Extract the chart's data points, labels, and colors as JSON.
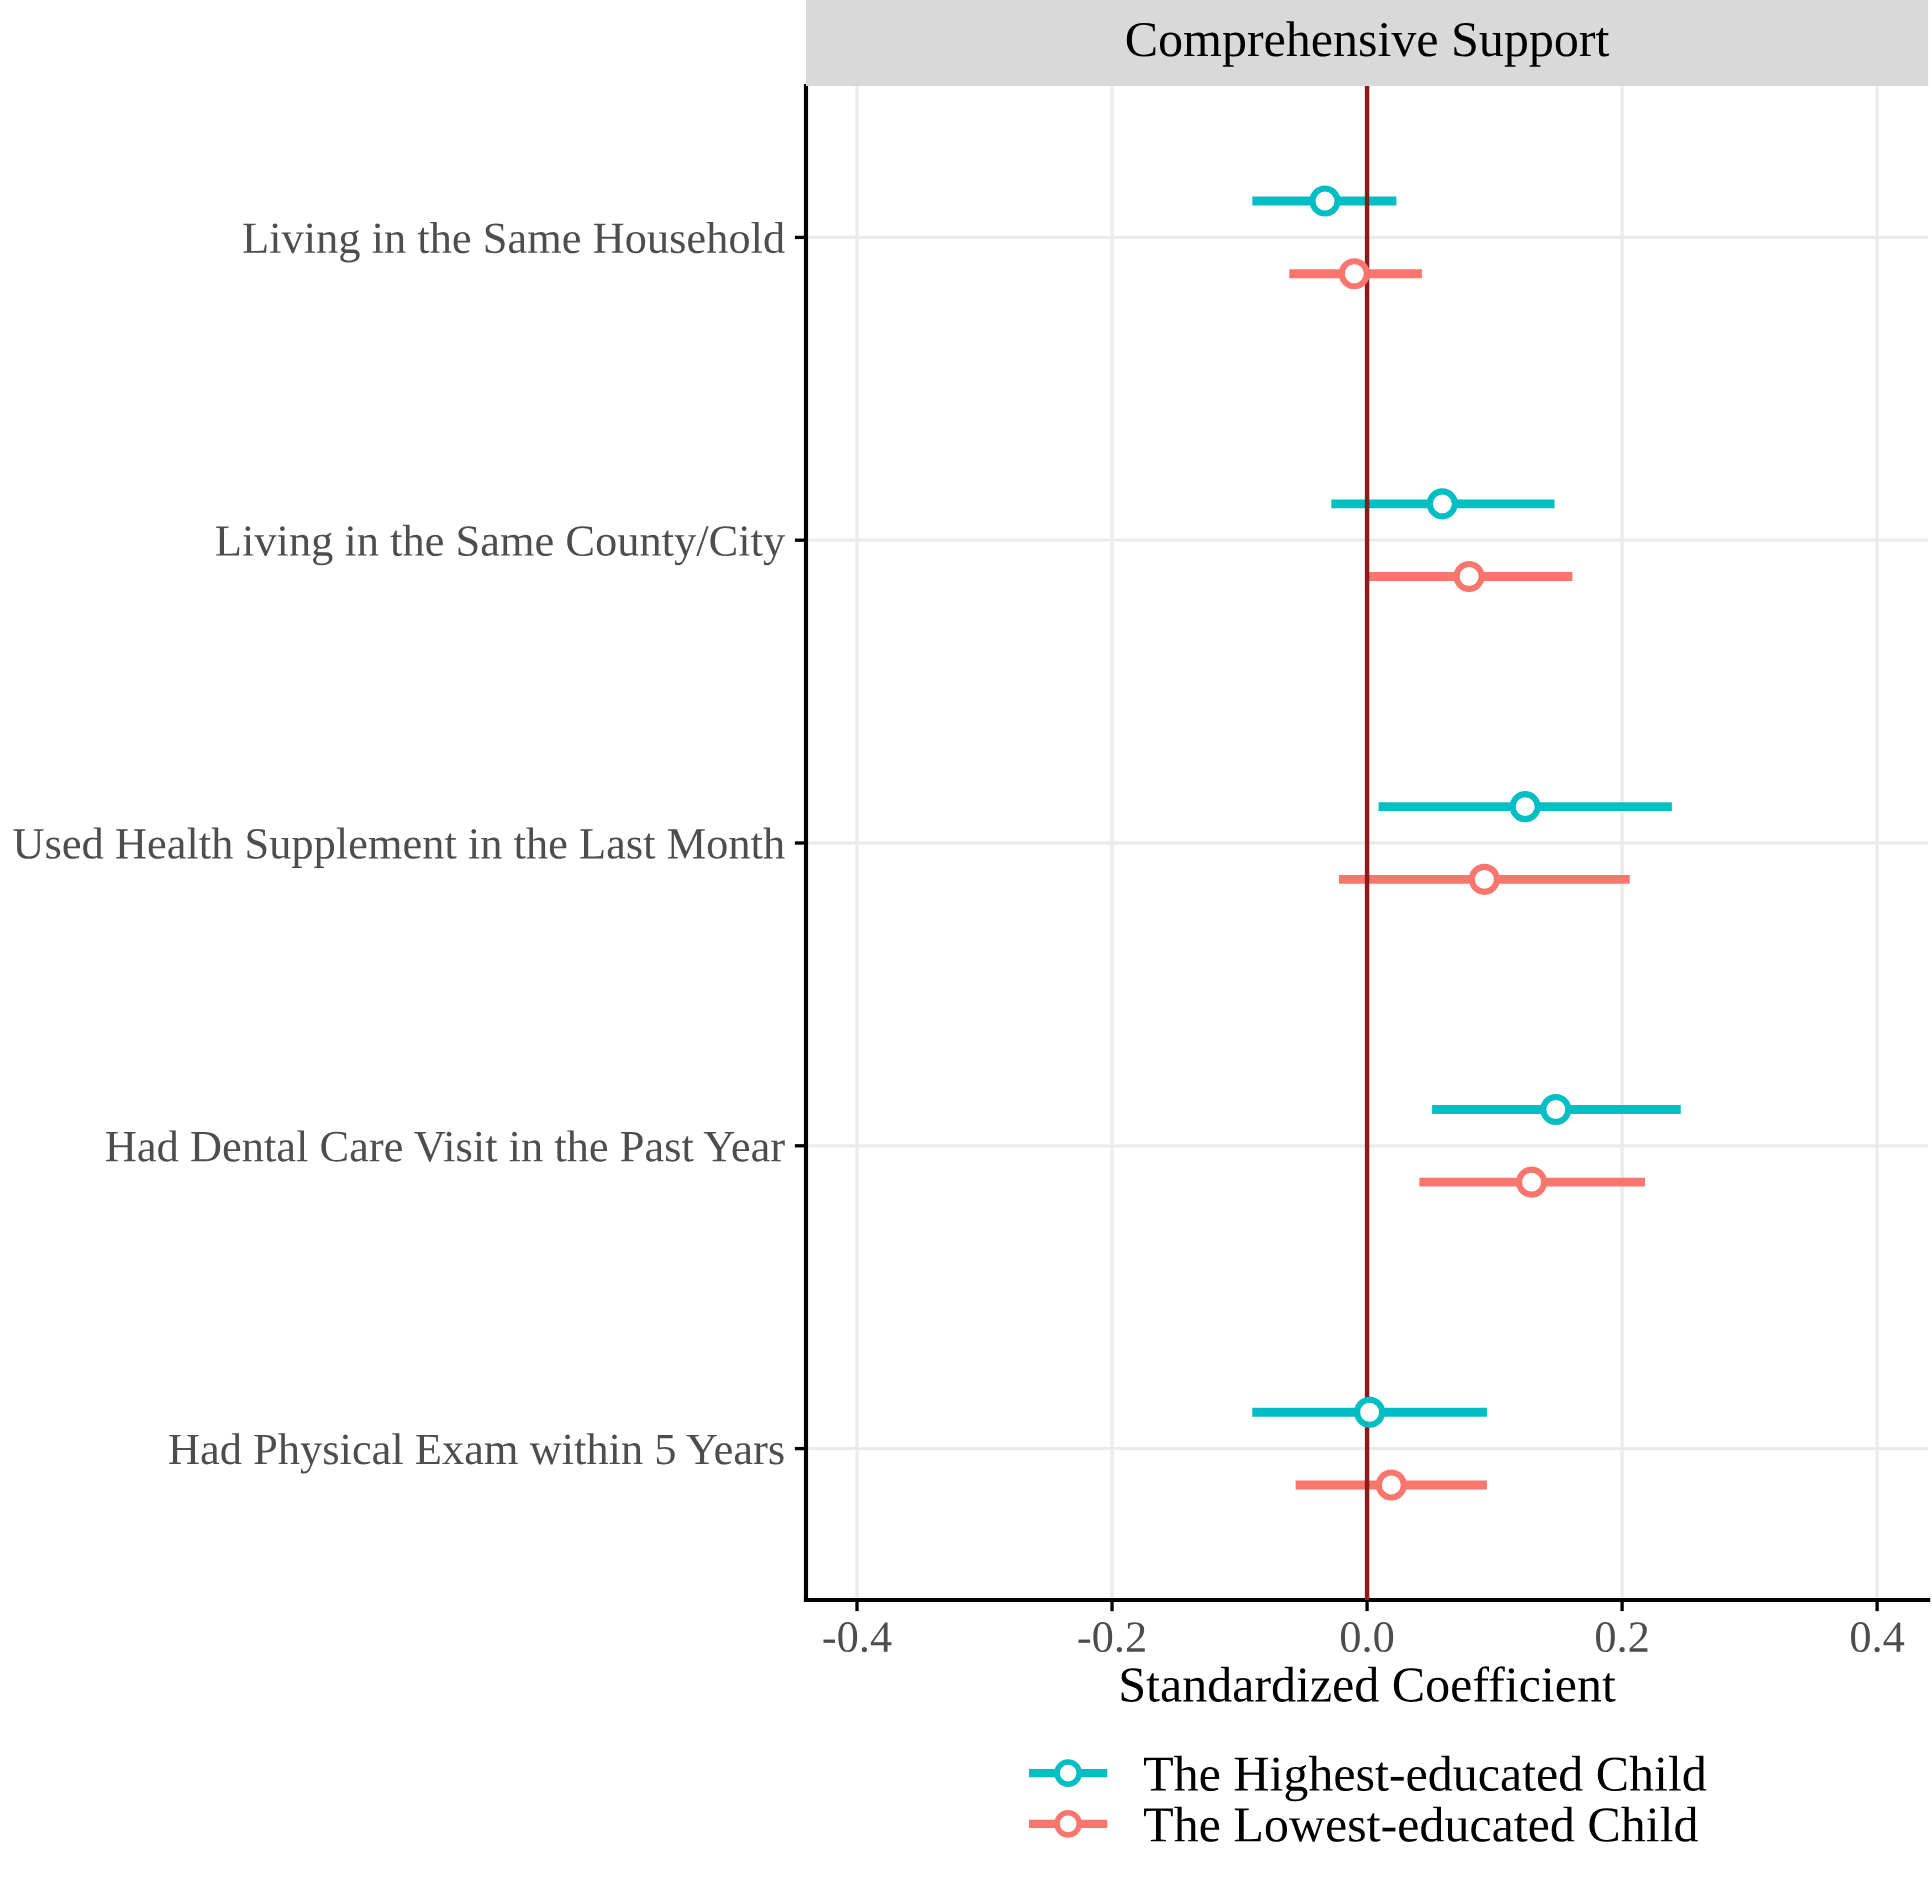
{
  "chart_data": {
    "type": "scatter",
    "orientation": "horizontal",
    "title": "Comprehensive Support",
    "xlabel": "Standardized Coefficient",
    "categories": [
      "Living in the Same Household",
      "Living in the Same County/City",
      "Used Health Supplement in the Last Month",
      "Had Dental Care Visit in the Past Year",
      "Had Physical Exam within 5 Years"
    ],
    "series": [
      {
        "name": "The Highest-educated Child",
        "color": "#00bfc4",
        "values": [
          -0.033,
          0.059,
          0.124,
          0.148,
          0.002
        ],
        "errors": [
          [
            -0.09,
            0.023
          ],
          [
            -0.028,
            0.147
          ],
          [
            0.009,
            0.239
          ],
          [
            0.051,
            0.246
          ],
          [
            -0.09,
            0.094
          ]
        ]
      },
      {
        "name": "The Lowest-educated Child",
        "color": "#f8766d",
        "values": [
          -0.01,
          0.08,
          0.092,
          0.129,
          0.019
        ],
        "errors": [
          [
            -0.061,
            0.043
          ],
          [
            0.0,
            0.161
          ],
          [
            -0.022,
            0.206
          ],
          [
            0.041,
            0.218
          ],
          [
            -0.056,
            0.094
          ]
        ]
      }
    ],
    "xlim": [
      -0.44,
      0.44
    ],
    "xticks": [
      {
        "value": -0.4,
        "label": "-0.4"
      },
      {
        "value": -0.2,
        "label": "-0.2"
      },
      {
        "value": 0,
        "label": "0.0"
      },
      {
        "value": 0.2,
        "label": "0.2"
      },
      {
        "value": 0.4,
        "label": "0.4"
      }
    ],
    "ref_lines": [
      {
        "axis": "x",
        "value": 0,
        "color": "#8b1a1a"
      }
    ],
    "grid": true,
    "legend": "bottom",
    "marker": "circle"
  }
}
